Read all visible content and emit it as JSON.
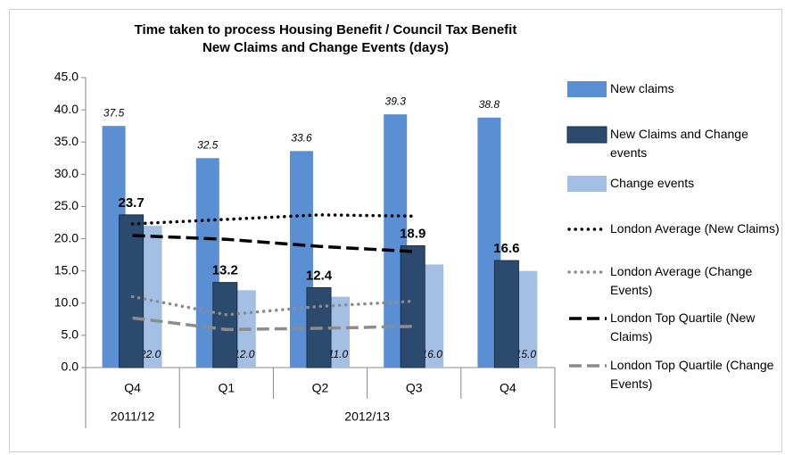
{
  "chart_data": {
    "type": "bar",
    "title": "Time taken to process Housing Benefit / Council Tax Benefit\nNew Claims and Change Events (days)",
    "categories": [
      "Q4",
      "Q1",
      "Q2",
      "Q3",
      "Q4"
    ],
    "category_groups": [
      {
        "label": "2011/12",
        "span": 1
      },
      {
        "label": "2012/13",
        "span": 4
      }
    ],
    "ylim": [
      0,
      45
    ],
    "yticks": [
      {
        "value": 0,
        "label": "0.0"
      },
      {
        "value": 5,
        "label": "5.0"
      },
      {
        "value": 10,
        "label": "10.0"
      },
      {
        "value": 15,
        "label": "15.0"
      },
      {
        "value": 20,
        "label": "20.0"
      },
      {
        "value": 25,
        "label": "25.0"
      },
      {
        "value": 30,
        "label": "30.0"
      },
      {
        "value": 35,
        "label": "35.0"
      },
      {
        "value": 40,
        "label": "40.0"
      },
      {
        "value": 45,
        "label": "45.0"
      }
    ],
    "grid": false,
    "legend": "right",
    "series": [
      {
        "name": "New claims",
        "type": "bar",
        "color": "#5b8fd4",
        "values": [
          37.5,
          32.5,
          33.6,
          39.3,
          38.8
        ]
      },
      {
        "name": "New Claims and Change events",
        "type": "bar",
        "color": "#2b4a6e",
        "values": [
          23.7,
          13.2,
          12.4,
          18.9,
          16.6
        ]
      },
      {
        "name": "Change events",
        "type": "bar",
        "color": "#a3c0e4",
        "values": [
          22,
          12,
          11,
          16,
          15
        ],
        "value_labels": [
          "22.0",
          "12.0",
          "11.0",
          "16.0",
          "15.0"
        ]
      },
      {
        "name": "London Average (New Claims)",
        "type": "line",
        "color": "#000000",
        "dash": "dotted",
        "values": [
          22.3,
          23.0,
          23.7,
          23.5,
          null
        ]
      },
      {
        "name": "London Average (Change Events)",
        "type": "line",
        "color": "#8c8c8c",
        "dash": "dotted",
        "values": [
          11.0,
          8.2,
          9.5,
          10.3,
          null
        ]
      },
      {
        "name": "London Top Quartile (New Claims)",
        "type": "line",
        "color": "#000000",
        "dash": "dashed",
        "values": [
          20.5,
          19.9,
          18.8,
          18.0,
          null
        ]
      },
      {
        "name": "London Top Quartile (Change Events)",
        "type": "line",
        "color": "#8c8c8c",
        "dash": "dashed",
        "values": [
          7.7,
          5.9,
          6.1,
          6.4,
          null
        ]
      }
    ]
  }
}
